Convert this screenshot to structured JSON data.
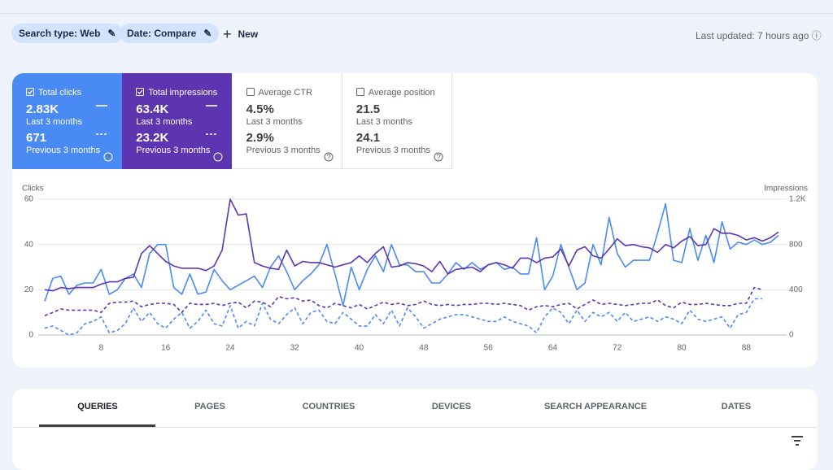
{
  "toolbar": {
    "chips": [
      "Search type: Web",
      "Date: Compare"
    ],
    "new_button": "New",
    "last_updated": "Last updated: 7 hours ago"
  },
  "metrics": [
    {
      "label": "Total clicks",
      "value": "2.83K",
      "period": "Last 3 months",
      "prev_value": "671",
      "prev_period": "Previous 3 months"
    },
    {
      "label": "Total impressions",
      "value": "63.4K",
      "period": "Last 3 months",
      "prev_value": "23.2K",
      "prev_period": "Previous 3 months"
    },
    {
      "label": "Average CTR",
      "value": "4.5%",
      "period": "Last 3 months",
      "prev_value": "2.9%",
      "prev_period": "Previous 3 months"
    },
    {
      "label": "Average position",
      "value": "21.5",
      "period": "Last 3 months",
      "prev_value": "24.1",
      "prev_period": "Previous 3 months"
    }
  ],
  "tabs": [
    "QUERIES",
    "PAGES",
    "COUNTRIES",
    "DEVICES",
    "SEARCH APPEARANCE",
    "DATES"
  ],
  "chart_data": {
    "type": "line",
    "y_label": "Clicks",
    "y2_label": "Impressions",
    "grid": true,
    "x": [
      1,
      2,
      3,
      4,
      5,
      6,
      7,
      8,
      9,
      10,
      11,
      12,
      13,
      14,
      15,
      16,
      17,
      18,
      19,
      20,
      21,
      22,
      23,
      24,
      25,
      26,
      27,
      28,
      29,
      30,
      31,
      32,
      33,
      34,
      35,
      36,
      37,
      38,
      39,
      40,
      41,
      42,
      43,
      44,
      45,
      46,
      47,
      48,
      49,
      50,
      51,
      52,
      53,
      54,
      55,
      56,
      57,
      58,
      59,
      60,
      61,
      62,
      63,
      64,
      65,
      66,
      67,
      68,
      69,
      70,
      71,
      72,
      73,
      74,
      75,
      76,
      77,
      78,
      79,
      80,
      81,
      82,
      83,
      84,
      85,
      86,
      87,
      88,
      89,
      90,
      91,
      92
    ],
    "xlim": [
      1,
      92
    ],
    "xticks": [
      8,
      16,
      24,
      32,
      40,
      48,
      56,
      64,
      72,
      80,
      88
    ],
    "ylim": [
      0,
      60
    ],
    "yticks": [
      0,
      20,
      40,
      60
    ],
    "y2lim": [
      0,
      1200
    ],
    "y2ticks": [
      0,
      400,
      800,
      {
        "value": 1200,
        "label": "1.2K"
      }
    ],
    "series": [
      {
        "name": "Total clicks",
        "color": "#4a8af4",
        "line_style": "solid",
        "axis": "y",
        "values": [
          15,
          25,
          26,
          18,
          22,
          23,
          23,
          29,
          18,
          20,
          25,
          27,
          21,
          36,
          40,
          40,
          21,
          18,
          27,
          18,
          19,
          29,
          24,
          20,
          22,
          24,
          26,
          21,
          30,
          35,
          28,
          20,
          24,
          27,
          31,
          40,
          27,
          13,
          30,
          20,
          29,
          35,
          28,
          40,
          31,
          31,
          28,
          28,
          23,
          23,
          27,
          32,
          29,
          32,
          29,
          31,
          32,
          29,
          30,
          27,
          27,
          43,
          20,
          26,
          40,
          30,
          20,
          23,
          40,
          31,
          52,
          36,
          30,
          33,
          33,
          33,
          45,
          58,
          33,
          32,
          47,
          33,
          44,
          32,
          50,
          38,
          41,
          40,
          42,
          40,
          41,
          44
        ]
      },
      {
        "name": "Total impressions",
        "color": "#5e35b1",
        "line_style": "solid",
        "axis": "y2",
        "values": [
          400,
          390,
          420,
          410,
          420,
          420,
          420,
          450,
          470,
          470,
          500,
          510,
          720,
          790,
          720,
          650,
          610,
          590,
          590,
          590,
          570,
          610,
          750,
          1200,
          1060,
          1070,
          640,
          610,
          590,
          580,
          750,
          610,
          650,
          640,
          640,
          620,
          600,
          620,
          640,
          700,
          640,
          720,
          780,
          600,
          610,
          640,
          630,
          610,
          560,
          650,
          540,
          580,
          590,
          600,
          560,
          620,
          640,
          620,
          590,
          680,
          680,
          640,
          680,
          690,
          760,
          610,
          750,
          780,
          700,
          680,
          760,
          850,
          790,
          800,
          780,
          770,
          730,
          800,
          770,
          830,
          870,
          790,
          800,
          940,
          900,
          900,
          880,
          840,
          860,
          830,
          860,
          910
        ]
      },
      {
        "name": "Total clicks (previous)",
        "color": "#4a8af4",
        "line_style": "dashed",
        "axis": "y",
        "values": [
          3,
          4,
          2,
          0,
          1,
          5,
          6,
          8,
          1,
          2,
          5,
          12,
          6,
          10,
          5,
          3,
          7,
          10,
          3,
          6,
          11,
          5,
          4,
          13,
          3,
          6,
          4,
          14,
          7,
          5,
          9,
          12,
          5,
          10,
          11,
          6,
          5,
          10,
          7,
          4,
          4,
          9,
          5,
          11,
          4,
          12,
          8,
          3,
          5,
          7,
          8,
          9,
          9,
          8,
          7,
          6,
          6,
          8,
          6,
          5,
          4,
          1,
          8,
          12,
          10,
          5,
          11,
          6,
          10,
          8,
          10,
          6,
          10,
          6,
          7,
          8,
          6,
          8,
          7,
          5,
          11,
          7,
          6,
          7,
          8,
          3,
          9,
          10,
          16,
          16,
          null,
          null
        ]
      },
      {
        "name": "Total impressions (previous)",
        "color": "#5e35b1",
        "line_style": "dashed",
        "axis": "y2",
        "values": [
          170,
          200,
          230,
          220,
          220,
          220,
          220,
          200,
          280,
          290,
          290,
          300,
          250,
          270,
          280,
          280,
          270,
          200,
          280,
          270,
          270,
          280,
          260,
          280,
          290,
          240,
          300,
          290,
          250,
          340,
          320,
          330,
          300,
          310,
          260,
          240,
          280,
          260,
          240,
          270,
          230,
          260,
          290,
          270,
          280,
          260,
          270,
          300,
          270,
          260,
          270,
          260,
          270,
          270,
          280,
          280,
          270,
          280,
          270,
          260,
          220,
          250,
          260,
          250,
          270,
          280,
          230,
          270,
          310,
          270,
          280,
          270,
          260,
          270,
          280,
          280,
          310,
          260,
          240,
          290,
          270,
          270,
          280,
          270,
          260,
          260,
          280,
          280,
          420,
          400,
          null,
          null
        ]
      }
    ]
  }
}
